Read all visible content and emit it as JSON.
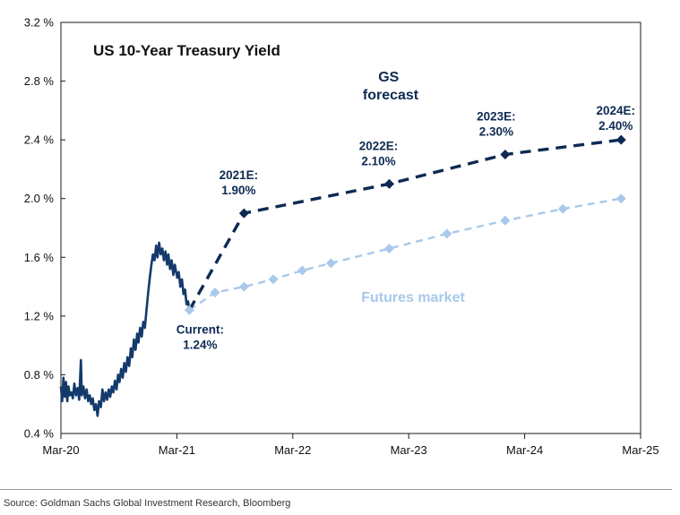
{
  "chart_data": {
    "type": "line",
    "title": "US 10-Year Treasury Yield",
    "ylim": [
      0.4,
      3.2
    ],
    "yticks": [
      0.4,
      0.8,
      1.2,
      1.6,
      2.0,
      2.4,
      2.8,
      3.2
    ],
    "ytick_labels": [
      "0.4 %",
      "0.8 %",
      "1.2 %",
      "1.6 %",
      "2.0 %",
      "2.4 %",
      "2.8 %",
      "3.2 %"
    ],
    "xlim": [
      "2020-03",
      "2025-03"
    ],
    "xticks": [
      "2020-03",
      "2021-03",
      "2022-03",
      "2023-03",
      "2024-03",
      "2025-03"
    ],
    "xtick_labels": [
      "Mar-20",
      "Mar-21",
      "Mar-22",
      "Mar-23",
      "Mar-24",
      "Mar-25"
    ],
    "colors": {
      "history": "#143a6b",
      "gs": "#0e2a52",
      "futures": "#a8c9ea"
    },
    "series": [
      {
        "name": "",
        "style": "solid",
        "points": [
          [
            "2020-03-01",
            0.72
          ],
          [
            "2020-03-05",
            0.62
          ],
          [
            "2020-03-09",
            0.78
          ],
          [
            "2020-03-13",
            0.65
          ],
          [
            "2020-03-17",
            0.75
          ],
          [
            "2020-03-21",
            0.62
          ],
          [
            "2020-03-25",
            0.72
          ],
          [
            "2020-03-29",
            0.66
          ],
          [
            "2020-04-03",
            0.68
          ],
          [
            "2020-04-08",
            0.64
          ],
          [
            "2020-04-13",
            0.74
          ],
          [
            "2020-04-18",
            0.66
          ],
          [
            "2020-04-23",
            0.71
          ],
          [
            "2020-04-28",
            0.63
          ],
          [
            "2020-05-03",
            0.9
          ],
          [
            "2020-05-06",
            0.66
          ],
          [
            "2020-05-11",
            0.72
          ],
          [
            "2020-05-16",
            0.64
          ],
          [
            "2020-05-21",
            0.7
          ],
          [
            "2020-05-26",
            0.62
          ],
          [
            "2020-05-31",
            0.66
          ],
          [
            "2020-06-05",
            0.6
          ],
          [
            "2020-06-10",
            0.64
          ],
          [
            "2020-06-15",
            0.56
          ],
          [
            "2020-06-20",
            0.6
          ],
          [
            "2020-06-25",
            0.52
          ],
          [
            "2020-06-30",
            0.62
          ],
          [
            "2020-07-05",
            0.58
          ],
          [
            "2020-07-10",
            0.7
          ],
          [
            "2020-07-15",
            0.62
          ],
          [
            "2020-07-20",
            0.68
          ],
          [
            "2020-07-25",
            0.63
          ],
          [
            "2020-07-30",
            0.7
          ],
          [
            "2020-08-04",
            0.65
          ],
          [
            "2020-08-09",
            0.72
          ],
          [
            "2020-08-14",
            0.68
          ],
          [
            "2020-08-19",
            0.76
          ],
          [
            "2020-08-24",
            0.7
          ],
          [
            "2020-08-29",
            0.8
          ],
          [
            "2020-09-03",
            0.75
          ],
          [
            "2020-09-08",
            0.84
          ],
          [
            "2020-09-13",
            0.78
          ],
          [
            "2020-09-18",
            0.88
          ],
          [
            "2020-09-23",
            0.82
          ],
          [
            "2020-09-28",
            0.92
          ],
          [
            "2020-10-03",
            0.86
          ],
          [
            "2020-10-08",
            0.98
          ],
          [
            "2020-10-13",
            0.92
          ],
          [
            "2020-10-18",
            1.04
          ],
          [
            "2020-10-23",
            0.97
          ],
          [
            "2020-10-28",
            1.08
          ],
          [
            "2020-11-02",
            1.02
          ],
          [
            "2020-11-07",
            1.12
          ],
          [
            "2020-11-12",
            1.06
          ],
          [
            "2020-11-17",
            1.16
          ],
          [
            "2020-11-22",
            1.12
          ],
          [
            "2020-11-27",
            1.24
          ],
          [
            "2020-12-02",
            1.36
          ],
          [
            "2020-12-07",
            1.46
          ],
          [
            "2020-12-12",
            1.55
          ],
          [
            "2020-12-17",
            1.62
          ],
          [
            "2020-12-22",
            1.58
          ],
          [
            "2020-12-27",
            1.68
          ],
          [
            "2021-01-01",
            1.6
          ],
          [
            "2021-01-06",
            1.7
          ],
          [
            "2021-01-11",
            1.62
          ],
          [
            "2021-01-16",
            1.66
          ],
          [
            "2021-01-21",
            1.58
          ],
          [
            "2021-01-26",
            1.64
          ],
          [
            "2021-01-31",
            1.55
          ],
          [
            "2021-02-05",
            1.62
          ],
          [
            "2021-02-10",
            1.52
          ],
          [
            "2021-02-15",
            1.58
          ],
          [
            "2021-02-20",
            1.48
          ],
          [
            "2021-02-25",
            1.55
          ],
          [
            "2021-03-02",
            1.46
          ],
          [
            "2021-03-07",
            1.5
          ],
          [
            "2021-03-12",
            1.4
          ],
          [
            "2021-03-17",
            1.45
          ],
          [
            "2021-03-22",
            1.35
          ],
          [
            "2021-03-27",
            1.38
          ],
          [
            "2021-04-01",
            1.28
          ],
          [
            "2021-04-06",
            1.3
          ],
          [
            "2021-04-10",
            1.24
          ]
        ]
      },
      {
        "name": "GS forecast",
        "style": "dashed",
        "points": [
          [
            "2021-04-10",
            1.24
          ],
          [
            "2021-09-30",
            1.9
          ],
          [
            "2022-12-31",
            2.1
          ],
          [
            "2023-12-31",
            2.3
          ],
          [
            "2024-12-31",
            2.4
          ]
        ]
      },
      {
        "name": "Futures market",
        "style": "dashed",
        "points": [
          [
            "2021-04-10",
            1.24
          ],
          [
            "2021-06-30",
            1.36
          ],
          [
            "2021-09-30",
            1.4
          ],
          [
            "2021-12-31",
            1.45
          ],
          [
            "2022-03-31",
            1.51
          ],
          [
            "2022-06-30",
            1.56
          ],
          [
            "2022-12-31",
            1.66
          ],
          [
            "2023-06-30",
            1.76
          ],
          [
            "2023-12-31",
            1.85
          ],
          [
            "2024-06-30",
            1.93
          ],
          [
            "2024-12-31",
            2.0
          ]
        ]
      }
    ],
    "annotations": [
      {
        "id": "current",
        "text": [
          "Current:",
          "1.24%"
        ],
        "date": "2021-04-10",
        "value": 1.24
      },
      {
        "id": "e2021",
        "text": [
          "2021E:",
          "1.90%"
        ],
        "date": "2021-09-30",
        "value": 1.9
      },
      {
        "id": "e2022",
        "text": [
          "2022E:",
          "2.10%"
        ],
        "date": "2022-12-31",
        "value": 2.1
      },
      {
        "id": "e2023",
        "text": [
          "2023E:",
          "2.30%"
        ],
        "date": "2023-12-31",
        "value": 2.3
      },
      {
        "id": "e2024",
        "text": [
          "2024E:",
          "2.40%"
        ],
        "date": "2024-12-31",
        "value": 2.4
      }
    ],
    "series_labels": {
      "gs": [
        "GS",
        "forecast"
      ],
      "futures": "Futures market"
    }
  },
  "source": "Source: Goldman Sachs Global Investment Research, Bloomberg"
}
